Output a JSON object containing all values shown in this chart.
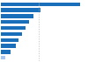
{
  "values": [
    62.4,
    31.2,
    26.0,
    22.1,
    19.5,
    16.9,
    14.3,
    11.7,
    7.8,
    3.9
  ],
  "bar_color": "#1a6fbb",
  "last_bar_color": "#a8c8f0",
  "background_color": "#ffffff",
  "dashed_line_x": 30,
  "ylim": [
    -0.6,
    9.6
  ],
  "xlim": [
    0,
    68
  ]
}
